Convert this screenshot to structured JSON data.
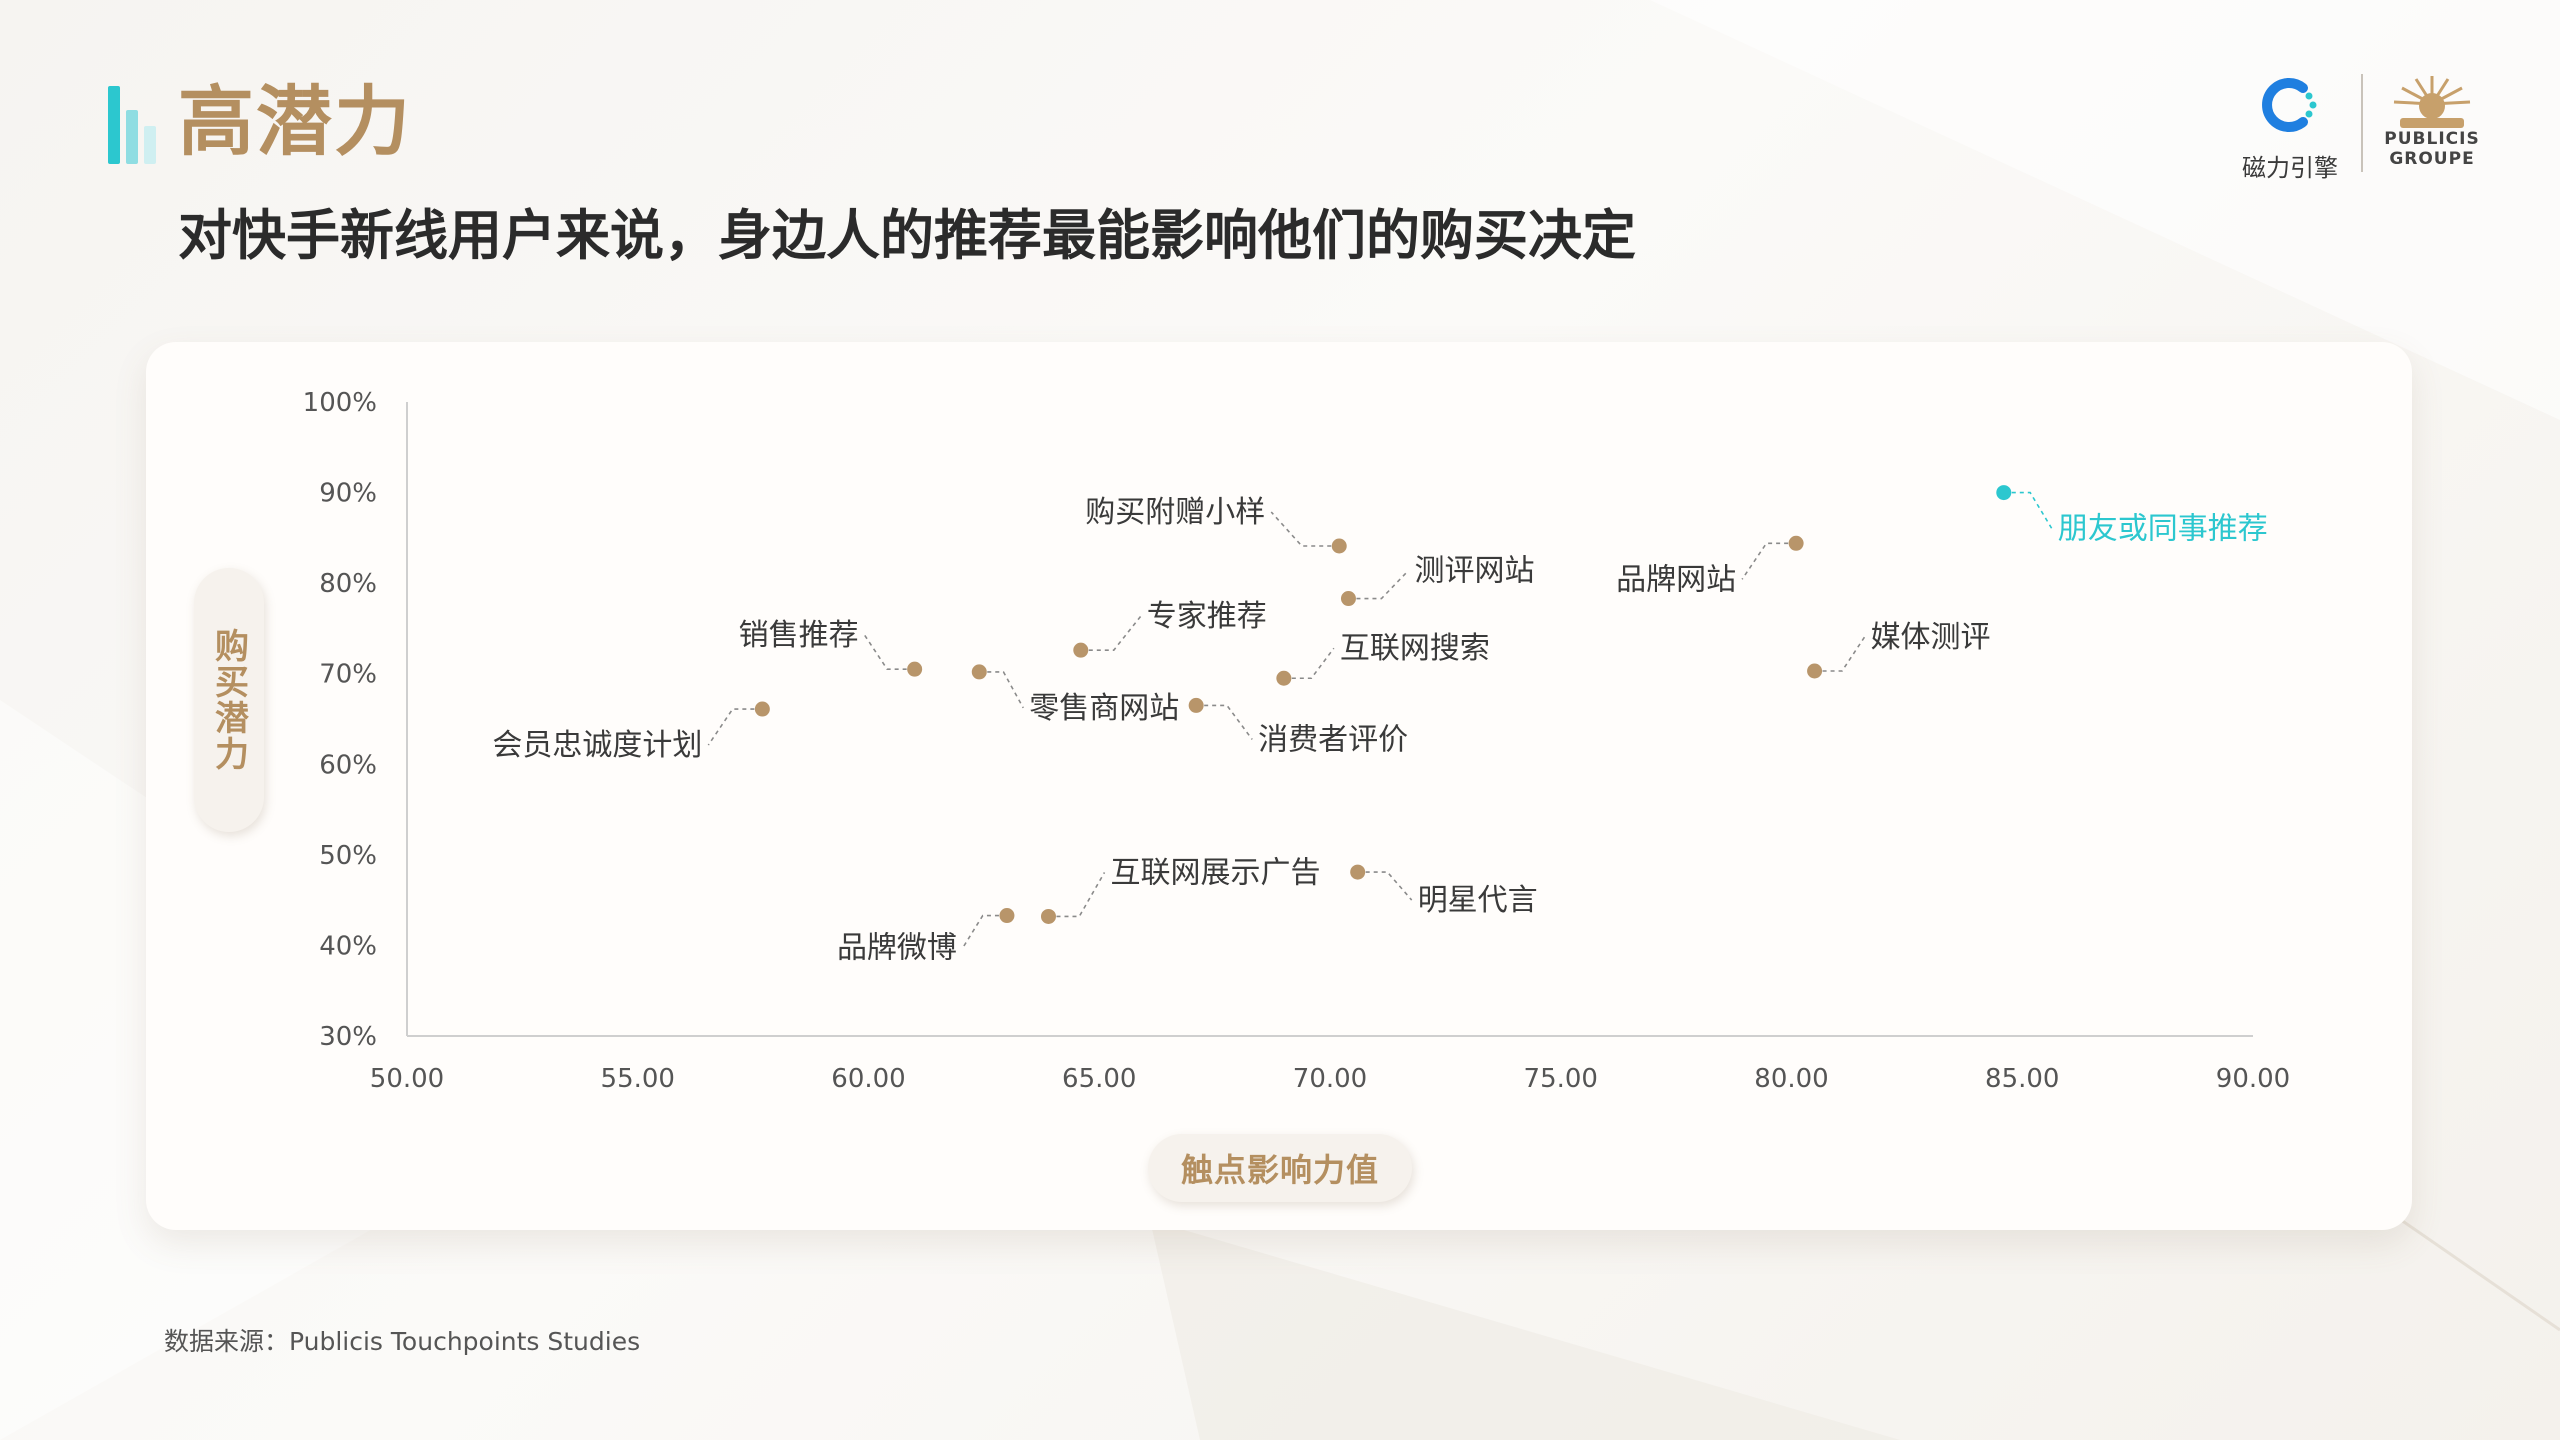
{
  "header": {
    "title": "高潜力",
    "subtitle": "对快手新线用户来说，身边人的推荐最能影响他们的购买决定"
  },
  "logos": {
    "left_name": "磁力引擎",
    "right_line1": "PUBLICIS",
    "right_line2": "GROUPE"
  },
  "colors": {
    "accent_gold": "#b48f60",
    "dot_gold": "#b8956a",
    "highlight_cyan": "#2cc7cf"
  },
  "chart_data": {
    "type": "scatter",
    "title": "",
    "xlabel": "触点影响力值",
    "ylabel": "购买潜力",
    "xlim": [
      50,
      90
    ],
    "ylim": [
      30,
      100
    ],
    "x_ticks": [
      "50.00",
      "55.00",
      "60.00",
      "65.00",
      "70.00",
      "75.00",
      "80.00",
      "85.00",
      "90.00"
    ],
    "y_ticks": [
      "30%",
      "40%",
      "50%",
      "60%",
      "70%",
      "80%",
      "90%",
      "100%"
    ],
    "grid": false,
    "points": [
      {
        "label": "朋友或同事推荐",
        "x": 84.6,
        "y": 90.0,
        "highlight": true
      },
      {
        "label": "品牌网站",
        "x": 80.1,
        "y": 84.4
      },
      {
        "label": "媒体测评",
        "x": 80.5,
        "y": 70.3
      },
      {
        "label": "购买附赠小样",
        "x": 70.2,
        "y": 84.1
      },
      {
        "label": "测评网站",
        "x": 70.4,
        "y": 78.3
      },
      {
        "label": "专家推荐",
        "x": 64.6,
        "y": 72.6
      },
      {
        "label": "互联网搜索",
        "x": 69.0,
        "y": 69.5
      },
      {
        "label": "销售推荐",
        "x": 61.0,
        "y": 70.5
      },
      {
        "label": "零售商网站",
        "x": 62.4,
        "y": 70.2
      },
      {
        "label": "消费者评价",
        "x": 67.1,
        "y": 66.5
      },
      {
        "label": "会员忠诚度计划",
        "x": 57.7,
        "y": 66.1
      },
      {
        "label": "互联网展示广告",
        "x": 63.9,
        "y": 43.2
      },
      {
        "label": "明星代言",
        "x": 70.6,
        "y": 48.1
      },
      {
        "label": "品牌微博",
        "x": 63.0,
        "y": 43.3
      }
    ]
  },
  "footer": {
    "source": "数据来源：Publicis Touchpoints Studies"
  }
}
